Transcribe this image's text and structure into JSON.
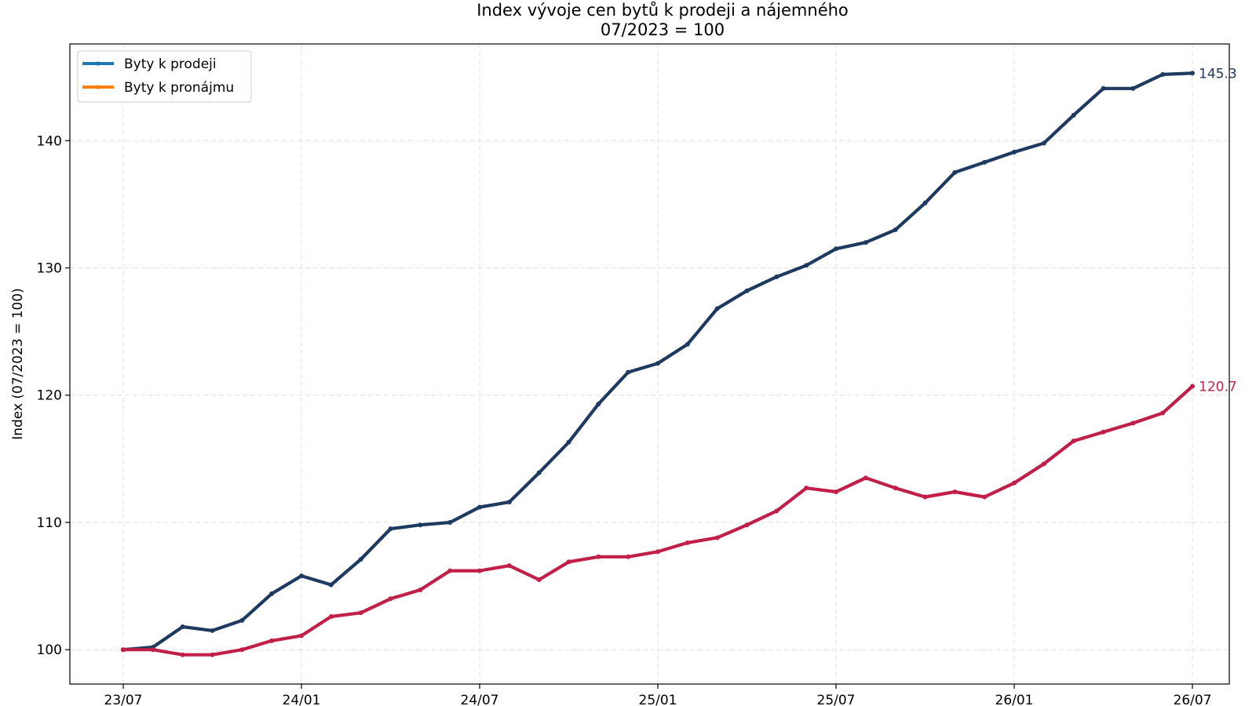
{
  "chart_data": {
    "type": "line",
    "title": "Index vývoje cen bytů k prodeji a nájemného",
    "subtitle": "07/2023 = 100",
    "xlabel": "",
    "ylabel": "Index (07/2023 = 100)",
    "ylim": [
      97.3,
      147.6
    ],
    "y_ticks": [
      100,
      110,
      120,
      130,
      140
    ],
    "x_tick_labels": [
      "23/07",
      "24/01",
      "24/07",
      "25/01",
      "25/07",
      "26/01",
      "26/07"
    ],
    "grid": true,
    "legend_placement": "top-left",
    "x": [
      "23/07",
      "23/08",
      "23/09",
      "23/10",
      "23/11",
      "23/12",
      "24/01",
      "24/02",
      "24/03",
      "24/04",
      "24/05",
      "24/06",
      "24/07",
      "24/08",
      "24/09",
      "24/10",
      "24/11",
      "24/12",
      "25/01",
      "25/02",
      "25/03",
      "25/04",
      "25/05",
      "25/06",
      "25/07",
      "25/08",
      "25/09",
      "25/10",
      "25/11",
      "25/12",
      "26/01",
      "26/02",
      "26/03",
      "26/04",
      "26/05",
      "26/06",
      "26/07"
    ],
    "series": [
      {
        "name": "Byty k prodeji",
        "legend_color": "#1f77b4",
        "line_color": "#1f3a60",
        "end_label": "145.3",
        "values": [
          100.0,
          100.2,
          101.8,
          101.5,
          102.3,
          104.4,
          105.8,
          105.1,
          107.1,
          109.5,
          109.8,
          110.0,
          111.2,
          111.6,
          113.9,
          116.3,
          119.3,
          121.8,
          122.5,
          124.0,
          126.8,
          128.2,
          129.3,
          130.2,
          131.5,
          132.0,
          133.0,
          135.1,
          137.5,
          138.3,
          139.1,
          139.8,
          142.0,
          144.1,
          144.1,
          145.2,
          145.3
        ]
      },
      {
        "name": "Byty k pronájmu",
        "legend_color": "#ff7f0e",
        "line_color": "#c11e48",
        "end_label": "120.7",
        "values": [
          100.0,
          100.0,
          99.6,
          99.6,
          100.0,
          100.7,
          101.1,
          102.6,
          102.9,
          104.0,
          104.7,
          106.2,
          106.2,
          106.6,
          105.5,
          106.9,
          107.3,
          107.3,
          107.7,
          108.4,
          108.8,
          109.8,
          110.9,
          112.7,
          112.4,
          113.5,
          112.7,
          112.0,
          112.4,
          112.0,
          113.1,
          114.6,
          116.4,
          117.1,
          117.8,
          118.6,
          120.7
        ]
      }
    ]
  }
}
